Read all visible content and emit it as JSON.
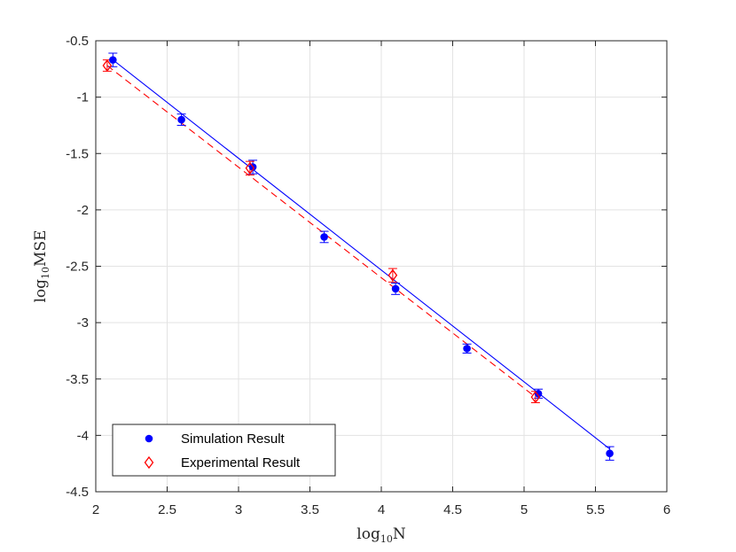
{
  "chart_data": {
    "type": "scatter",
    "title": "",
    "xlabel": {
      "base": "log",
      "sub": "10",
      "rest": "N"
    },
    "ylabel": {
      "base": "log",
      "sub": "10",
      "rest": "MSE"
    },
    "xlim": [
      2,
      6
    ],
    "ylim": [
      -4.5,
      -0.5
    ],
    "xticks": [
      "2",
      "2.5",
      "3",
      "3.5",
      "4",
      "4.5",
      "5",
      "5.5",
      "6"
    ],
    "xtick_values": [
      2,
      2.5,
      3,
      3.5,
      4,
      4.5,
      5,
      5.5,
      6
    ],
    "yticks": [
      "-0.5",
      "-1",
      "-1.5",
      "-2",
      "-2.5",
      "-3",
      "-3.5",
      "-4",
      "-4.5"
    ],
    "ytick_values": [
      -0.5,
      -1,
      -1.5,
      -2,
      -2.5,
      -3,
      -3.5,
      -4,
      -4.5
    ],
    "grid": true,
    "legend_position": "bottom-left",
    "series": [
      {
        "name": "Simulation Result",
        "marker": "filled-circle",
        "color": "#0000ff",
        "x": [
          2.12,
          2.6,
          3.1,
          3.6,
          4.1,
          4.6,
          5.1,
          5.6
        ],
        "y": [
          -0.67,
          -1.2,
          -1.62,
          -2.24,
          -2.7,
          -3.23,
          -3.63,
          -4.16
        ],
        "err": [
          0.06,
          0.05,
          0.06,
          0.05,
          0.05,
          0.04,
          0.04,
          0.06
        ],
        "fit": {
          "x": [
            2.1,
            5.6
          ],
          "y": [
            -0.65,
            -4.12
          ],
          "style": "solid"
        }
      },
      {
        "name": "Experimental Result",
        "marker": "open-diamond",
        "color": "#ff0000",
        "x": [
          2.08,
          3.08,
          4.08,
          5.08
        ],
        "y": [
          -0.72,
          -1.63,
          -2.58,
          -3.66
        ],
        "err": [
          0.05,
          0.06,
          0.06,
          0.05
        ],
        "fit": {
          "x": [
            2.08,
            5.08
          ],
          "y": [
            -0.72,
            -3.66
          ],
          "style": "dashed"
        }
      }
    ]
  }
}
